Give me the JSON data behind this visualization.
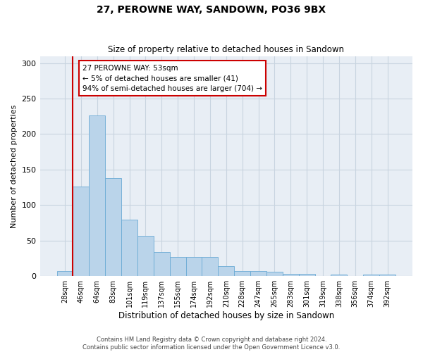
{
  "title": "27, PEROWNE WAY, SANDOWN, PO36 9BX",
  "subtitle": "Size of property relative to detached houses in Sandown",
  "xlabel": "Distribution of detached houses by size in Sandown",
  "ylabel": "Number of detached properties",
  "categories": [
    "28sqm",
    "46sqm",
    "64sqm",
    "83sqm",
    "101sqm",
    "119sqm",
    "137sqm",
    "155sqm",
    "174sqm",
    "192sqm",
    "210sqm",
    "228sqm",
    "247sqm",
    "265sqm",
    "283sqm",
    "301sqm",
    "319sqm",
    "338sqm",
    "356sqm",
    "374sqm",
    "392sqm"
  ],
  "values": [
    7,
    126,
    226,
    138,
    80,
    57,
    34,
    27,
    27,
    27,
    14,
    7,
    7,
    6,
    3,
    3,
    0,
    2,
    0,
    2,
    2
  ],
  "bar_color": "#bad4ea",
  "bar_edgecolor": "#6aaad4",
  "grid_color": "#c8d4e0",
  "background_color": "#e8eef5",
  "annotation_text": "27 PEROWNE WAY: 53sqm\n← 5% of detached houses are smaller (41)\n94% of semi-detached houses are larger (704) →",
  "annotation_box_color": "#ffffff",
  "annotation_box_edgecolor": "#cc0000",
  "vline_color": "#cc0000",
  "vline_position": 0.5,
  "ylim": [
    0,
    310
  ],
  "yticks": [
    0,
    50,
    100,
    150,
    200,
    250,
    300
  ],
  "footer_line1": "Contains HM Land Registry data © Crown copyright and database right 2024.",
  "footer_line2": "Contains public sector information licensed under the Open Government Licence v3.0."
}
